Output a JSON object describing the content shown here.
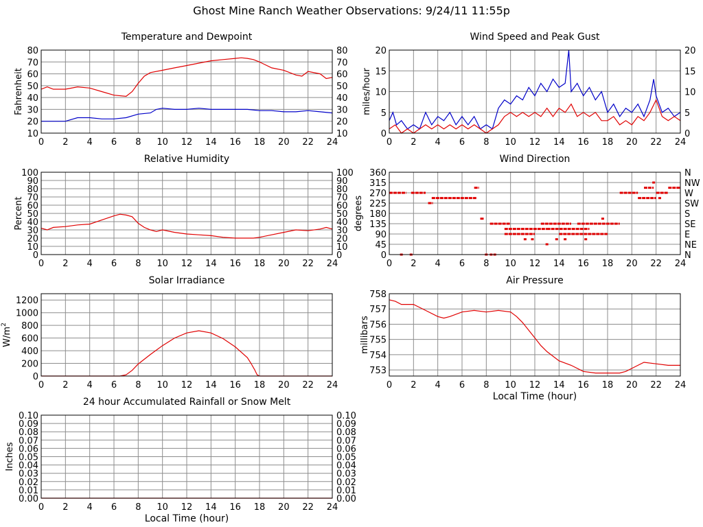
{
  "title": "Ghost Mine Ranch Weather Observations: 9/24/11 11:55p",
  "x_tick_labels": [
    "0",
    "2",
    "4",
    "6",
    "8",
    "10",
    "12",
    "14",
    "16",
    "18",
    "20",
    "22",
    "24"
  ],
  "colors": {
    "red": "#e00000",
    "blue": "#0000c8",
    "grid": "#8c8c8c",
    "frame": "#000000"
  },
  "chart_data": [
    {
      "id": "temp",
      "type": "line",
      "title": "Temperature and Dewpoint",
      "ylabel": "Fahrenheit",
      "xlabel": "",
      "xlim": [
        0,
        24
      ],
      "ylim": [
        10,
        80
      ],
      "yticks": [
        10,
        20,
        30,
        40,
        50,
        60,
        70,
        80
      ],
      "right_axis": true,
      "grid": true,
      "series": [
        {
          "color": "red",
          "x": [
            0,
            0.5,
            1,
            2,
            3,
            4,
            5,
            6,
            7,
            7.5,
            8,
            8.5,
            9,
            10,
            11,
            12,
            13,
            14,
            15,
            16,
            16.5,
            17,
            17.5,
            18,
            19,
            20,
            21,
            21.5,
            22,
            23,
            23.5,
            24
          ],
          "y": [
            47,
            49,
            47,
            47,
            49,
            48,
            45,
            42,
            41,
            45,
            52,
            58,
            61,
            63,
            65,
            67,
            69,
            71,
            72,
            73,
            73.5,
            73,
            72,
            70,
            65,
            63,
            59,
            58,
            62,
            60,
            56,
            57
          ]
        },
        {
          "color": "blue",
          "x": [
            0,
            1,
            2,
            3,
            4,
            5,
            6,
            7,
            8,
            9,
            9.5,
            10,
            11,
            12,
            13,
            14,
            15,
            16,
            17,
            18,
            19,
            20,
            21,
            22,
            23,
            24
          ],
          "y": [
            20,
            20,
            20,
            23,
            23,
            22,
            22,
            23,
            26,
            27,
            30,
            31,
            30,
            30,
            31,
            30,
            30,
            30,
            30,
            29,
            29,
            28,
            28,
            29,
            28,
            27
          ]
        }
      ]
    },
    {
      "id": "wind",
      "type": "line",
      "title": "Wind Speed and Peak Gust",
      "ylabel": "miles/hour",
      "xlabel": "",
      "xlim": [
        0,
        24
      ],
      "ylim": [
        0,
        20
      ],
      "yticks": [
        0,
        5,
        10,
        15,
        20
      ],
      "right_axis": true,
      "grid": true,
      "series": [
        {
          "color": "blue",
          "x": [
            0,
            0.3,
            0.6,
            1,
            1.5,
            2,
            2.5,
            3,
            3.5,
            4,
            4.5,
            5,
            5.5,
            6,
            6.5,
            7,
            7.5,
            8,
            8.5,
            9,
            9.5,
            10,
            10.5,
            11,
            11.5,
            12,
            12.5,
            13,
            13.5,
            14,
            14.5,
            14.8,
            15,
            15.5,
            16,
            16.5,
            17,
            17.5,
            18,
            18.5,
            19,
            19.5,
            20,
            20.5,
            21,
            21.5,
            21.8,
            22,
            22.5,
            23,
            23.5,
            24
          ],
          "y": [
            3,
            5,
            2,
            3,
            1,
            2,
            1,
            5,
            2,
            4,
            3,
            5,
            2,
            4,
            2,
            4,
            1,
            2,
            1,
            6,
            8,
            7,
            9,
            8,
            11,
            9,
            12,
            10,
            13,
            11,
            12,
            20,
            10,
            12,
            9,
            11,
            8,
            10,
            5,
            7,
            4,
            6,
            5,
            7,
            4,
            8,
            13,
            9,
            5,
            6,
            4,
            5
          ]
        },
        {
          "color": "red",
          "x": [
            0,
            0.5,
            1,
            1.5,
            2,
            2.5,
            3,
            3.5,
            4,
            4.5,
            5,
            5.5,
            6,
            6.5,
            7,
            7.5,
            8,
            8.5,
            9,
            9.5,
            10,
            10.5,
            11,
            11.5,
            12,
            12.5,
            13,
            13.5,
            14,
            14.5,
            15,
            15.5,
            16,
            16.5,
            17,
            17.5,
            18,
            18.5,
            19,
            19.5,
            20,
            20.5,
            21,
            21.5,
            22,
            22.5,
            23,
            23.5,
            24
          ],
          "y": [
            1,
            2,
            0,
            1,
            0,
            1,
            2,
            1,
            2,
            1,
            2,
            1,
            2,
            1,
            2,
            1,
            0,
            1,
            2,
            4,
            5,
            4,
            5,
            4,
            5,
            4,
            6,
            4,
            6,
            5,
            7,
            4,
            5,
            4,
            5,
            3,
            3,
            4,
            2,
            3,
            2,
            4,
            3,
            5,
            8,
            4,
            3,
            4,
            3
          ]
        }
      ]
    },
    {
      "id": "rh",
      "type": "line",
      "title": "Relative Humidity",
      "ylabel": "Percent",
      "xlabel": "",
      "xlim": [
        0,
        24
      ],
      "ylim": [
        0,
        100
      ],
      "yticks": [
        0,
        10,
        20,
        30,
        40,
        50,
        60,
        70,
        80,
        90,
        100
      ],
      "right_axis": true,
      "grid": true,
      "series": [
        {
          "color": "red",
          "x": [
            0,
            0.5,
            1,
            2,
            3,
            4,
            5,
            6,
            6.5,
            7,
            7.5,
            8,
            8.5,
            9,
            9.5,
            10,
            11,
            12,
            13,
            14,
            15,
            16,
            17,
            17.5,
            18,
            19,
            20,
            21,
            22,
            23,
            23.5,
            24
          ],
          "y": [
            32,
            30,
            33,
            34,
            36,
            37,
            42,
            47,
            49,
            48,
            46,
            38,
            33,
            30,
            28,
            30,
            27,
            25,
            24,
            23,
            21,
            20,
            20,
            20,
            21,
            24,
            27,
            30,
            29,
            31,
            33,
            31
          ]
        }
      ]
    },
    {
      "id": "wdir",
      "type": "scatter",
      "title": "Wind Direction",
      "ylabel": "degrees",
      "xlabel": "",
      "xlim": [
        0,
        24
      ],
      "ylim": [
        0,
        360
      ],
      "yticks": [
        0,
        45,
        90,
        135,
        180,
        225,
        270,
        315,
        360
      ],
      "right_tick_labels": [
        "N",
        "NE",
        "E",
        "SE",
        "S",
        "SW",
        "W",
        "NW",
        "N"
      ],
      "right_axis": true,
      "grid": true,
      "series": [
        {
          "color": "red",
          "segments": [
            {
              "x0": 0,
              "x1": 1.4,
              "y": 270
            },
            {
              "x0": 1.8,
              "x1": 3,
              "y": 270
            },
            {
              "x0": 3.2,
              "x1": 3.6,
              "y": 225
            },
            {
              "x0": 3.5,
              "x1": 7.2,
              "y": 247
            },
            {
              "x0": 7,
              "x1": 7.4,
              "y": 292
            },
            {
              "x0": 7.5,
              "x1": 7.8,
              "y": 157
            },
            {
              "x0": 8.3,
              "x1": 10,
              "y": 135
            },
            {
              "x0": 9.5,
              "x1": 13,
              "y": 112
            },
            {
              "x0": 9.5,
              "x1": 12,
              "y": 90
            },
            {
              "x0": 12.5,
              "x1": 15,
              "y": 135
            },
            {
              "x0": 13,
              "x1": 16.5,
              "y": 112
            },
            {
              "x0": 14,
              "x1": 18,
              "y": 90
            },
            {
              "x0": 15.5,
              "x1": 19,
              "y": 135
            },
            {
              "x0": 19,
              "x1": 20.5,
              "y": 270
            },
            {
              "x0": 20.5,
              "x1": 22,
              "y": 247
            },
            {
              "x0": 21,
              "x1": 21.8,
              "y": 292
            },
            {
              "x0": 22,
              "x1": 23,
              "y": 270
            },
            {
              "x0": 23,
              "x1": 24,
              "y": 292
            }
          ],
          "points": [
            {
              "x": 1.0,
              "y": 0
            },
            {
              "x": 1.8,
              "y": 0
            },
            {
              "x": 8.0,
              "y": 0
            },
            {
              "x": 8.4,
              "y": 0
            },
            {
              "x": 8.7,
              "y": 0
            },
            {
              "x": 11.2,
              "y": 67
            },
            {
              "x": 11.8,
              "y": 67
            },
            {
              "x": 13.0,
              "y": 45
            },
            {
              "x": 13.8,
              "y": 67
            },
            {
              "x": 14.5,
              "y": 67
            },
            {
              "x": 16.2,
              "y": 67
            },
            {
              "x": 17.6,
              "y": 157
            },
            {
              "x": 21.8,
              "y": 315
            },
            {
              "x": 22.3,
              "y": 247
            }
          ]
        }
      ]
    },
    {
      "id": "solar",
      "type": "line",
      "title": "Solar Irradiance",
      "ylabel": "W/m2",
      "ylabel_base": "W/m",
      "ylabel_sup": "2",
      "xlabel": "",
      "xlim": [
        0,
        24
      ],
      "ylim": [
        0,
        1300
      ],
      "yticks": [
        0,
        200,
        400,
        600,
        800,
        1000,
        1200
      ],
      "right_axis": false,
      "grid": true,
      "series": [
        {
          "color": "red",
          "x": [
            0,
            6.5,
            7,
            7.5,
            8,
            9,
            10,
            11,
            12,
            13,
            14,
            15,
            16,
            17,
            17.3,
            17.6,
            17.8,
            18,
            18.5,
            24
          ],
          "y": [
            0,
            0,
            20,
            90,
            190,
            340,
            480,
            600,
            680,
            715,
            680,
            590,
            460,
            290,
            200,
            100,
            20,
            0,
            0,
            0
          ]
        }
      ]
    },
    {
      "id": "press",
      "type": "line",
      "title": "Air Pressure",
      "ylabel": "millibars",
      "xlabel": "Local Time (hour)",
      "xlim": [
        0,
        24
      ],
      "ylim": [
        752.6,
        758
      ],
      "yticks": [
        753,
        754,
        755,
        756,
        757,
        758
      ],
      "right_axis": false,
      "grid": true,
      "series": [
        {
          "color": "red",
          "x": [
            0,
            0.5,
            1,
            2,
            3,
            4,
            4.5,
            5,
            6,
            7,
            8,
            9,
            10,
            10.5,
            11,
            12,
            12.5,
            13,
            13.5,
            14,
            15,
            16,
            17,
            18,
            19,
            19.5,
            20,
            20.5,
            21,
            22,
            23,
            24
          ],
          "y": [
            757.6,
            757.5,
            757.3,
            757.3,
            756.9,
            756.5,
            756.4,
            756.5,
            756.8,
            756.9,
            756.8,
            756.9,
            756.8,
            756.5,
            756.1,
            755.1,
            754.6,
            754.2,
            753.9,
            753.6,
            753.3,
            752.9,
            752.8,
            752.8,
            752.8,
            752.9,
            753.1,
            753.3,
            753.5,
            753.4,
            753.3,
            753.3
          ]
        }
      ]
    },
    {
      "id": "rain",
      "type": "line",
      "title": "24 hour Accumulated Rainfall or Snow Melt",
      "ylabel": "Inches",
      "xlabel": "Local Time (hour)",
      "xlim": [
        0,
        24
      ],
      "ylim": [
        0,
        0.1
      ],
      "yticks": [
        0,
        0.01,
        0.02,
        0.03,
        0.04,
        0.05,
        0.06,
        0.07,
        0.08,
        0.09,
        0.1
      ],
      "ytick_labels": [
        "0.00",
        "0.01",
        "0.02",
        "0.03",
        "0.04",
        "0.05",
        "0.06",
        "0.07",
        "0.08",
        "0.09",
        "0.10"
      ],
      "right_axis": true,
      "grid": true,
      "series": [
        {
          "color": "red",
          "x": [
            0,
            24
          ],
          "y": [
            0,
            0
          ]
        }
      ]
    }
  ]
}
